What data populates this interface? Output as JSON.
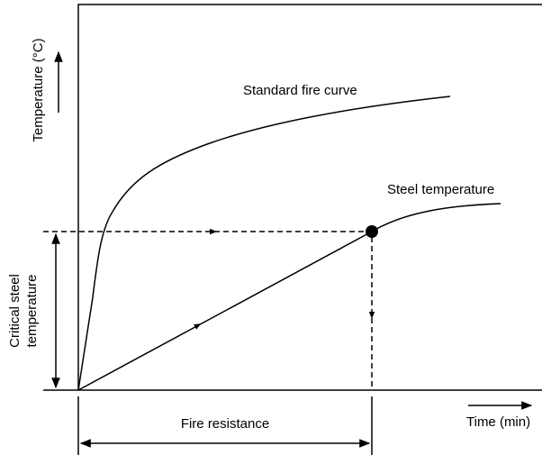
{
  "labels": {
    "y_axis": "Temperature (°C)",
    "fire_curve": "Standard fire curve",
    "steel_curve": "Steel temperature",
    "critical": [
      "Critical steel",
      "temperature"
    ],
    "fire_resistance": "Fire resistance",
    "x_axis": "Time (min)"
  }
}
